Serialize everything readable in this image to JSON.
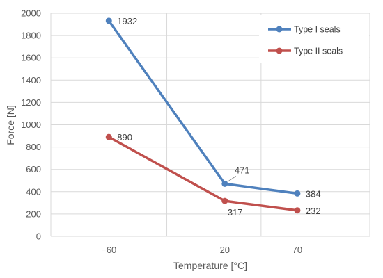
{
  "chart_data": {
    "type": "line",
    "title": "",
    "xlabel": "Temperature [°C]",
    "ylabel": "Force [N]",
    "categories": [
      "−60",
      "20",
      "70"
    ],
    "x": [
      -60,
      20,
      70
    ],
    "xlim": [
      -100,
      120
    ],
    "ylim": [
      0,
      2000
    ],
    "ytick_step": 200,
    "yticks": [
      "0",
      "200",
      "400",
      "600",
      "800",
      "1000",
      "1200",
      "1400",
      "1600",
      "1800",
      "2000"
    ],
    "grid": true,
    "legend_position": "top-right",
    "series": [
      {
        "name": "Type I seals",
        "color": "#4F81BD",
        "values": [
          1932,
          471,
          384
        ],
        "labels": [
          "1932",
          "471",
          "384"
        ]
      },
      {
        "name": "Type II seals",
        "color": "#C0504D",
        "values": [
          890,
          317,
          232
        ],
        "labels": [
          "890",
          "317",
          "232"
        ]
      }
    ]
  }
}
